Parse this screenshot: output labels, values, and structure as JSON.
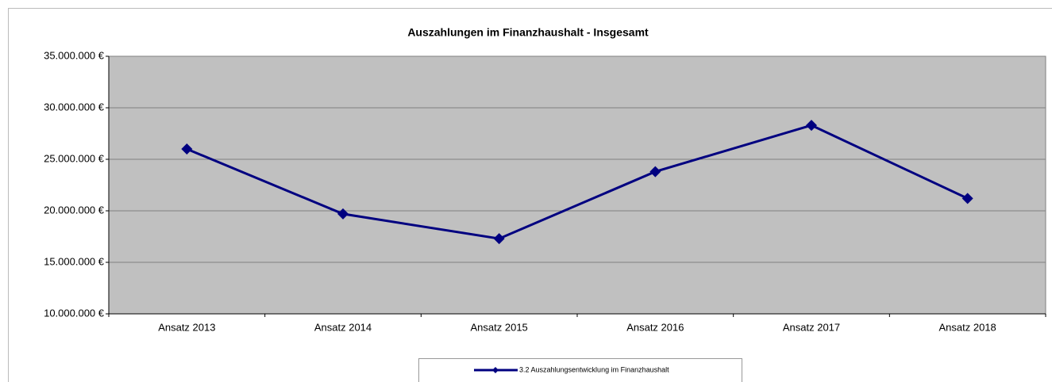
{
  "chart_data": {
    "type": "line",
    "title": "Auszahlungen im Finanzhaushalt - Insgesamt",
    "categories": [
      "Ansatz 2013",
      "Ansatz 2014",
      "Ansatz 2015",
      "Ansatz 2016",
      "Ansatz 2017",
      "Ansatz 2018"
    ],
    "series": [
      {
        "name": "3.2 Auszahlungsentwicklung im Finanzhaushalt",
        "color": "#000080",
        "values": [
          26000000,
          19700000,
          17300000,
          23800000,
          28300000,
          21200000
        ]
      }
    ],
    "ylim": [
      10000000,
      35000000
    ],
    "yticks": [
      {
        "value": 10000000,
        "label": "10.000.000 €"
      },
      {
        "value": 15000000,
        "label": "15.000.000 €"
      },
      {
        "value": 20000000,
        "label": "20.000.000 €"
      },
      {
        "value": 25000000,
        "label": "25.000.000 €"
      },
      {
        "value": 30000000,
        "label": "30.000.000 €"
      },
      {
        "value": 35000000,
        "label": "35.000.000 €"
      }
    ],
    "grid": true,
    "plot_background": "#c0c0c0",
    "legend": "bottom"
  }
}
